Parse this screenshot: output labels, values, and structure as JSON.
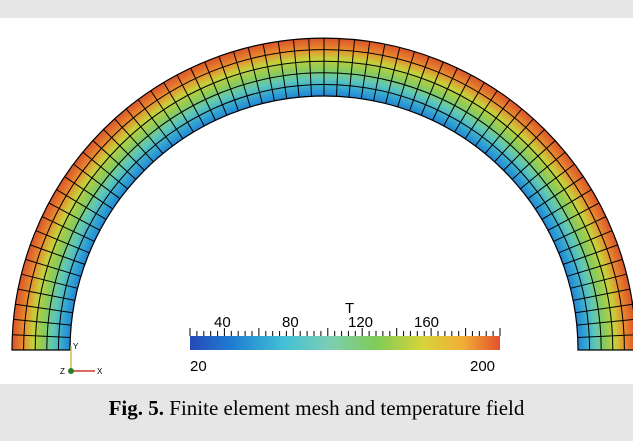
{
  "figure": {
    "caption_label": "Fig. 5.",
    "caption_text": " Finite element mesh and temperature field"
  },
  "colorbar": {
    "title": "T",
    "tick_labels": [
      "40",
      "80",
      "120",
      "160"
    ],
    "min_label": "20",
    "max_label": "200",
    "range": [
      20,
      200
    ],
    "colormap": [
      "#3b4cc0",
      "#1f77d8",
      "#31c1d4",
      "#7fd0b2",
      "#8ccf5f",
      "#d8d43a",
      "#f3b23a",
      "#e5512c"
    ]
  },
  "orientation_axes": {
    "y_label": "Y",
    "z_label": "Z",
    "x_label": "X",
    "y_color": "#c9c14a",
    "z_color": "#2a7f2a",
    "x_color": "#d23b2b"
  }
}
